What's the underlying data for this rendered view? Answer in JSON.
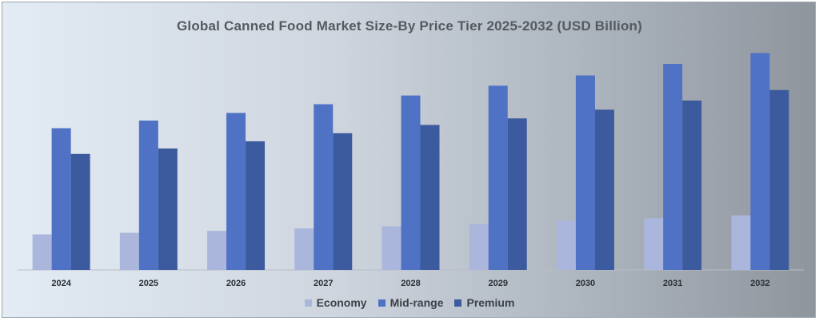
{
  "chart_data": {
    "type": "bar",
    "title": "Global Canned Food Market Size-By Price Tier 2025-2032 (USD Billion)",
    "xlabel": "",
    "ylabel": "",
    "categories": [
      "2024",
      "2025",
      "2026",
      "2027",
      "2028",
      "2029",
      "2030",
      "2031",
      "2032"
    ],
    "ylim": [
      0,
      100
    ],
    "grid": false,
    "legend_position": "bottom",
    "series": [
      {
        "name": "Economy",
        "color": "#aab6dc",
        "values": [
          16.3,
          17.0,
          17.9,
          19.0,
          20.0,
          21.0,
          22.5,
          23.7,
          25.0
        ]
      },
      {
        "name": "Mid-range",
        "color": "#4f72c4",
        "values": [
          65.0,
          68.5,
          72.0,
          76.0,
          80.0,
          84.5,
          89.2,
          94.5,
          99.5
        ]
      },
      {
        "name": "Premium",
        "color": "#3c5a9e",
        "values": [
          53.2,
          55.7,
          59.0,
          62.7,
          66.5,
          69.5,
          73.5,
          77.7,
          82.5
        ]
      }
    ]
  }
}
